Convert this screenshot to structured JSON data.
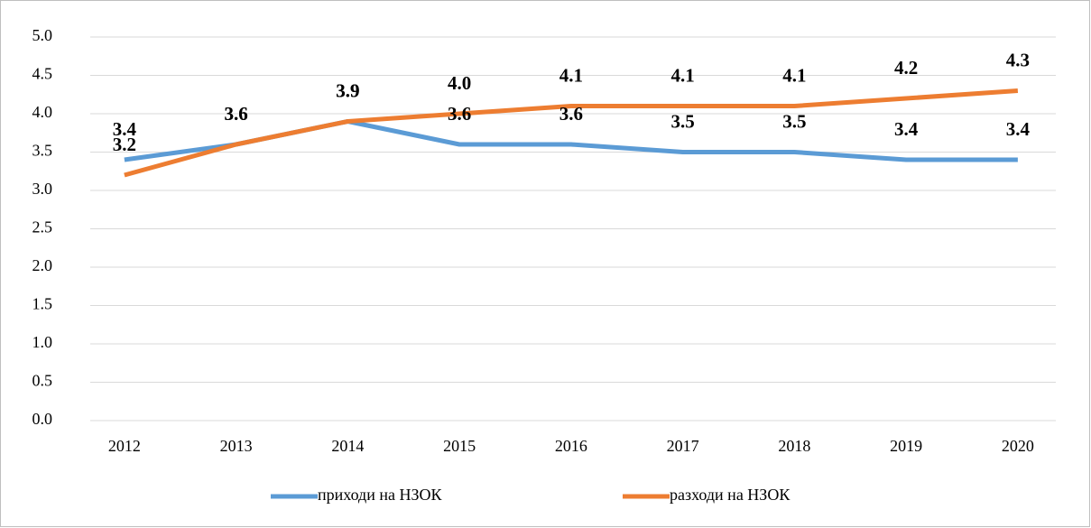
{
  "chart_data": {
    "type": "line",
    "categories": [
      "2012",
      "2013",
      "2014",
      "2015",
      "2016",
      "2017",
      "2018",
      "2019",
      "2020"
    ],
    "series": [
      {
        "name": "приходи на НЗОК",
        "color": "#5b9bd5",
        "values": [
          3.4,
          3.6,
          3.9,
          3.6,
          3.6,
          3.5,
          3.5,
          3.4,
          3.4
        ],
        "value_labels": [
          "3.4",
          "3.6",
          "3.9",
          "3.6",
          "3.6",
          "3.5",
          "3.5",
          "3.4",
          "3.4"
        ]
      },
      {
        "name": "разходи на НЗОК",
        "color": "#ed7d31",
        "values": [
          3.2,
          3.6,
          3.9,
          4.0,
          4.1,
          4.1,
          4.1,
          4.2,
          4.3
        ],
        "value_labels": [
          "3.2",
          "3.6",
          "3.9",
          "4.0",
          "4.1",
          "4.1",
          "4.1",
          "4.2",
          "4.3"
        ]
      }
    ],
    "ylim": [
      0,
      5
    ],
    "yticks": [
      {
        "value": 0,
        "label": "0.0"
      },
      {
        "value": 0.5,
        "label": "0.5"
      },
      {
        "value": 1,
        "label": "1.0"
      },
      {
        "value": 1.5,
        "label": "1.5"
      },
      {
        "value": 2,
        "label": "2.0"
      },
      {
        "value": 2.5,
        "label": "2.5"
      },
      {
        "value": 3,
        "label": "3.0"
      },
      {
        "value": 3.5,
        "label": "3.5"
      },
      {
        "value": 4,
        "label": "4.0"
      },
      {
        "value": 4.5,
        "label": "4.5"
      },
      {
        "value": 5,
        "label": "5.0"
      }
    ],
    "grid": true,
    "legend": "bottom"
  }
}
